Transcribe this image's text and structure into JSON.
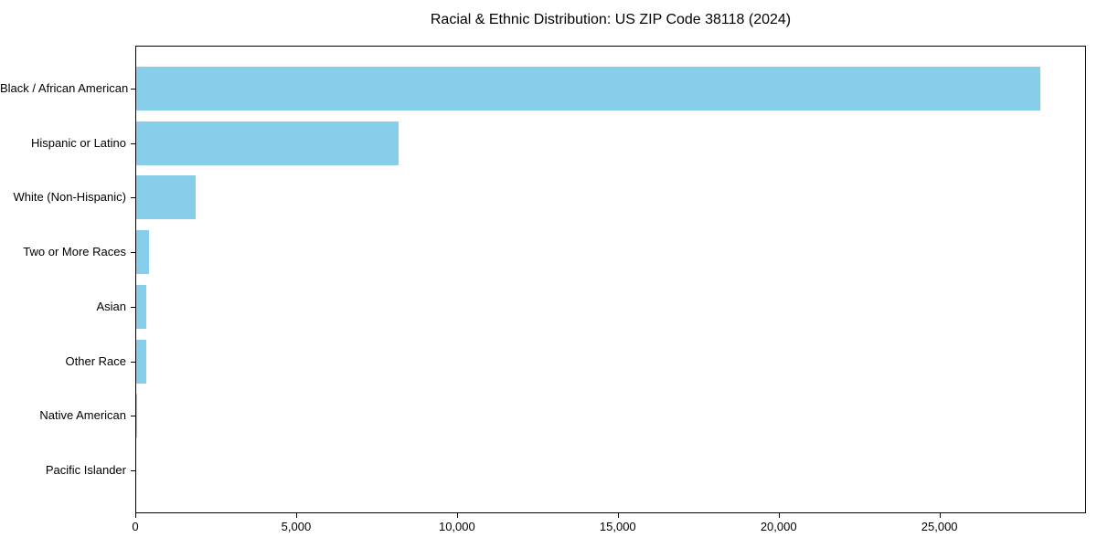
{
  "chart_data": {
    "type": "bar",
    "orientation": "horizontal",
    "title": "Racial & Ethnic Distribution: US ZIP Code 38118 (2024)",
    "xlabel": "",
    "ylabel": "",
    "categories": [
      "Black / African American",
      "Hispanic or Latino",
      "White (Non-Hispanic)",
      "Two or More Races",
      "Asian",
      "Other Race",
      "Native American",
      "Pacific Islander"
    ],
    "values": [
      28100,
      8150,
      1850,
      400,
      320,
      310,
      30,
      0
    ],
    "xlim": [
      0,
      29500
    ],
    "xticks": [
      0,
      5000,
      10000,
      15000,
      20000,
      25000
    ],
    "xtick_labels": [
      "0",
      "5,000",
      "10,000",
      "15,000",
      "20,000",
      "25,000"
    ],
    "bar_color": "#87CEEB",
    "axis_color": "#000000",
    "background_color": "#ffffff",
    "grid": false,
    "legend": "none"
  }
}
